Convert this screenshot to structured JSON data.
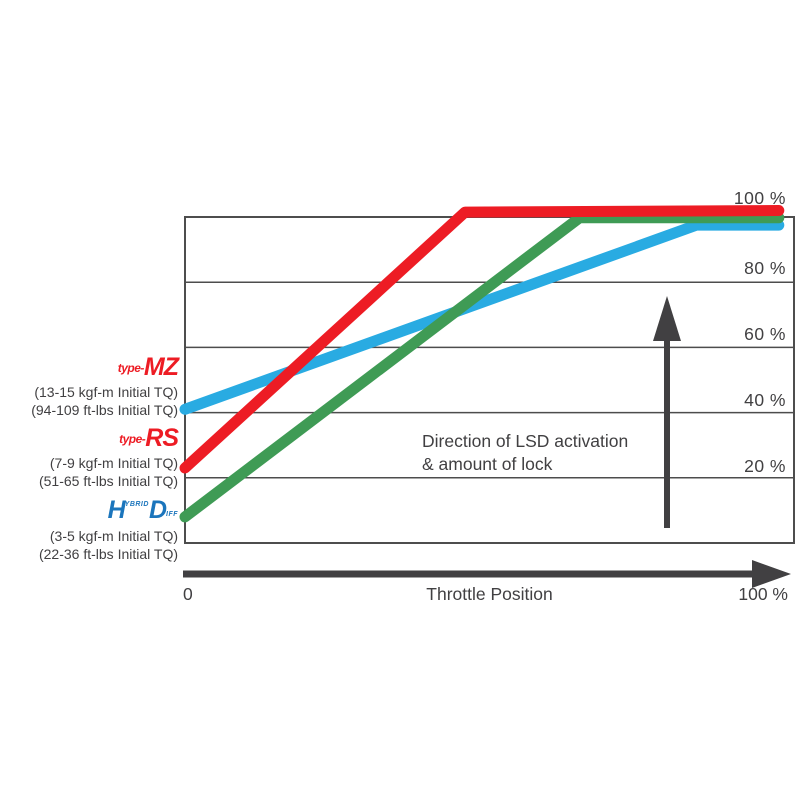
{
  "chart_data": {
    "type": "line",
    "title": "",
    "xlabel": "Throttle Position",
    "ylabel": "",
    "xlim": [
      0,
      100
    ],
    "ylim": [
      0,
      100
    ],
    "x_axis": {
      "min_label": "0",
      "max_label": "100 %"
    },
    "yticks": [
      "100 %",
      "80 %",
      "60 %",
      "40 %",
      "20 %"
    ],
    "grid_percent": [
      20,
      40,
      60,
      80
    ],
    "grid_on": true,
    "legend_position": "left-outside",
    "series": [
      {
        "name": "type-MZ",
        "color": "#29abe2",
        "points": [
          [
            0,
            41
          ],
          [
            84,
            97.5
          ],
          [
            97.5,
            97.5
          ]
        ]
      },
      {
        "name": "HD Hybrid Diff",
        "color": "#3f9b55",
        "points": [
          [
            0,
            8
          ],
          [
            64.8,
            99.8
          ],
          [
            97.5,
            99.8
          ]
        ]
      },
      {
        "name": "type-RS",
        "color": "#ed1c24",
        "points": [
          [
            0,
            23
          ],
          [
            46,
            101.5
          ],
          [
            97.5,
            102
          ]
        ]
      }
    ],
    "annotation": {
      "line1": "Direction of LSD activation",
      "line2": "& amount of lock"
    }
  },
  "legend": {
    "entries": [
      {
        "logo_prefix": "type-",
        "logo_name": "MZ",
        "logo_color": "#ed1c24",
        "line_color": "#29abe2",
        "sub1": "(13-15 kgf-m Initial TQ)",
        "sub2": "(94-109 ft-lbs Initial TQ)"
      },
      {
        "logo_prefix": "type-",
        "logo_name": "RS",
        "logo_color": "#ed1c24",
        "line_color": "#ed1c24",
        "sub1": "(7-9 kgf-m Initial TQ)",
        "sub2": "(51-65 ft-lbs Initial TQ)"
      },
      {
        "logo_h": "H",
        "logo_h_small": "YBRID",
        "logo_d": "D",
        "logo_d_small": "IFF",
        "logo_color": "#1b75bc",
        "line_color": "#3f9b55",
        "sub1": "(3-5 kgf-m Initial TQ)",
        "sub2": "(22-36 ft-lbs Initial TQ)"
      }
    ]
  },
  "colors": {
    "axis": "#414042",
    "grid": "#4d4d4d",
    "text": "#414042",
    "background": "#ffffff",
    "series_blue": "#29abe2",
    "series_green": "#3f9b55",
    "series_red": "#ed1c24"
  }
}
